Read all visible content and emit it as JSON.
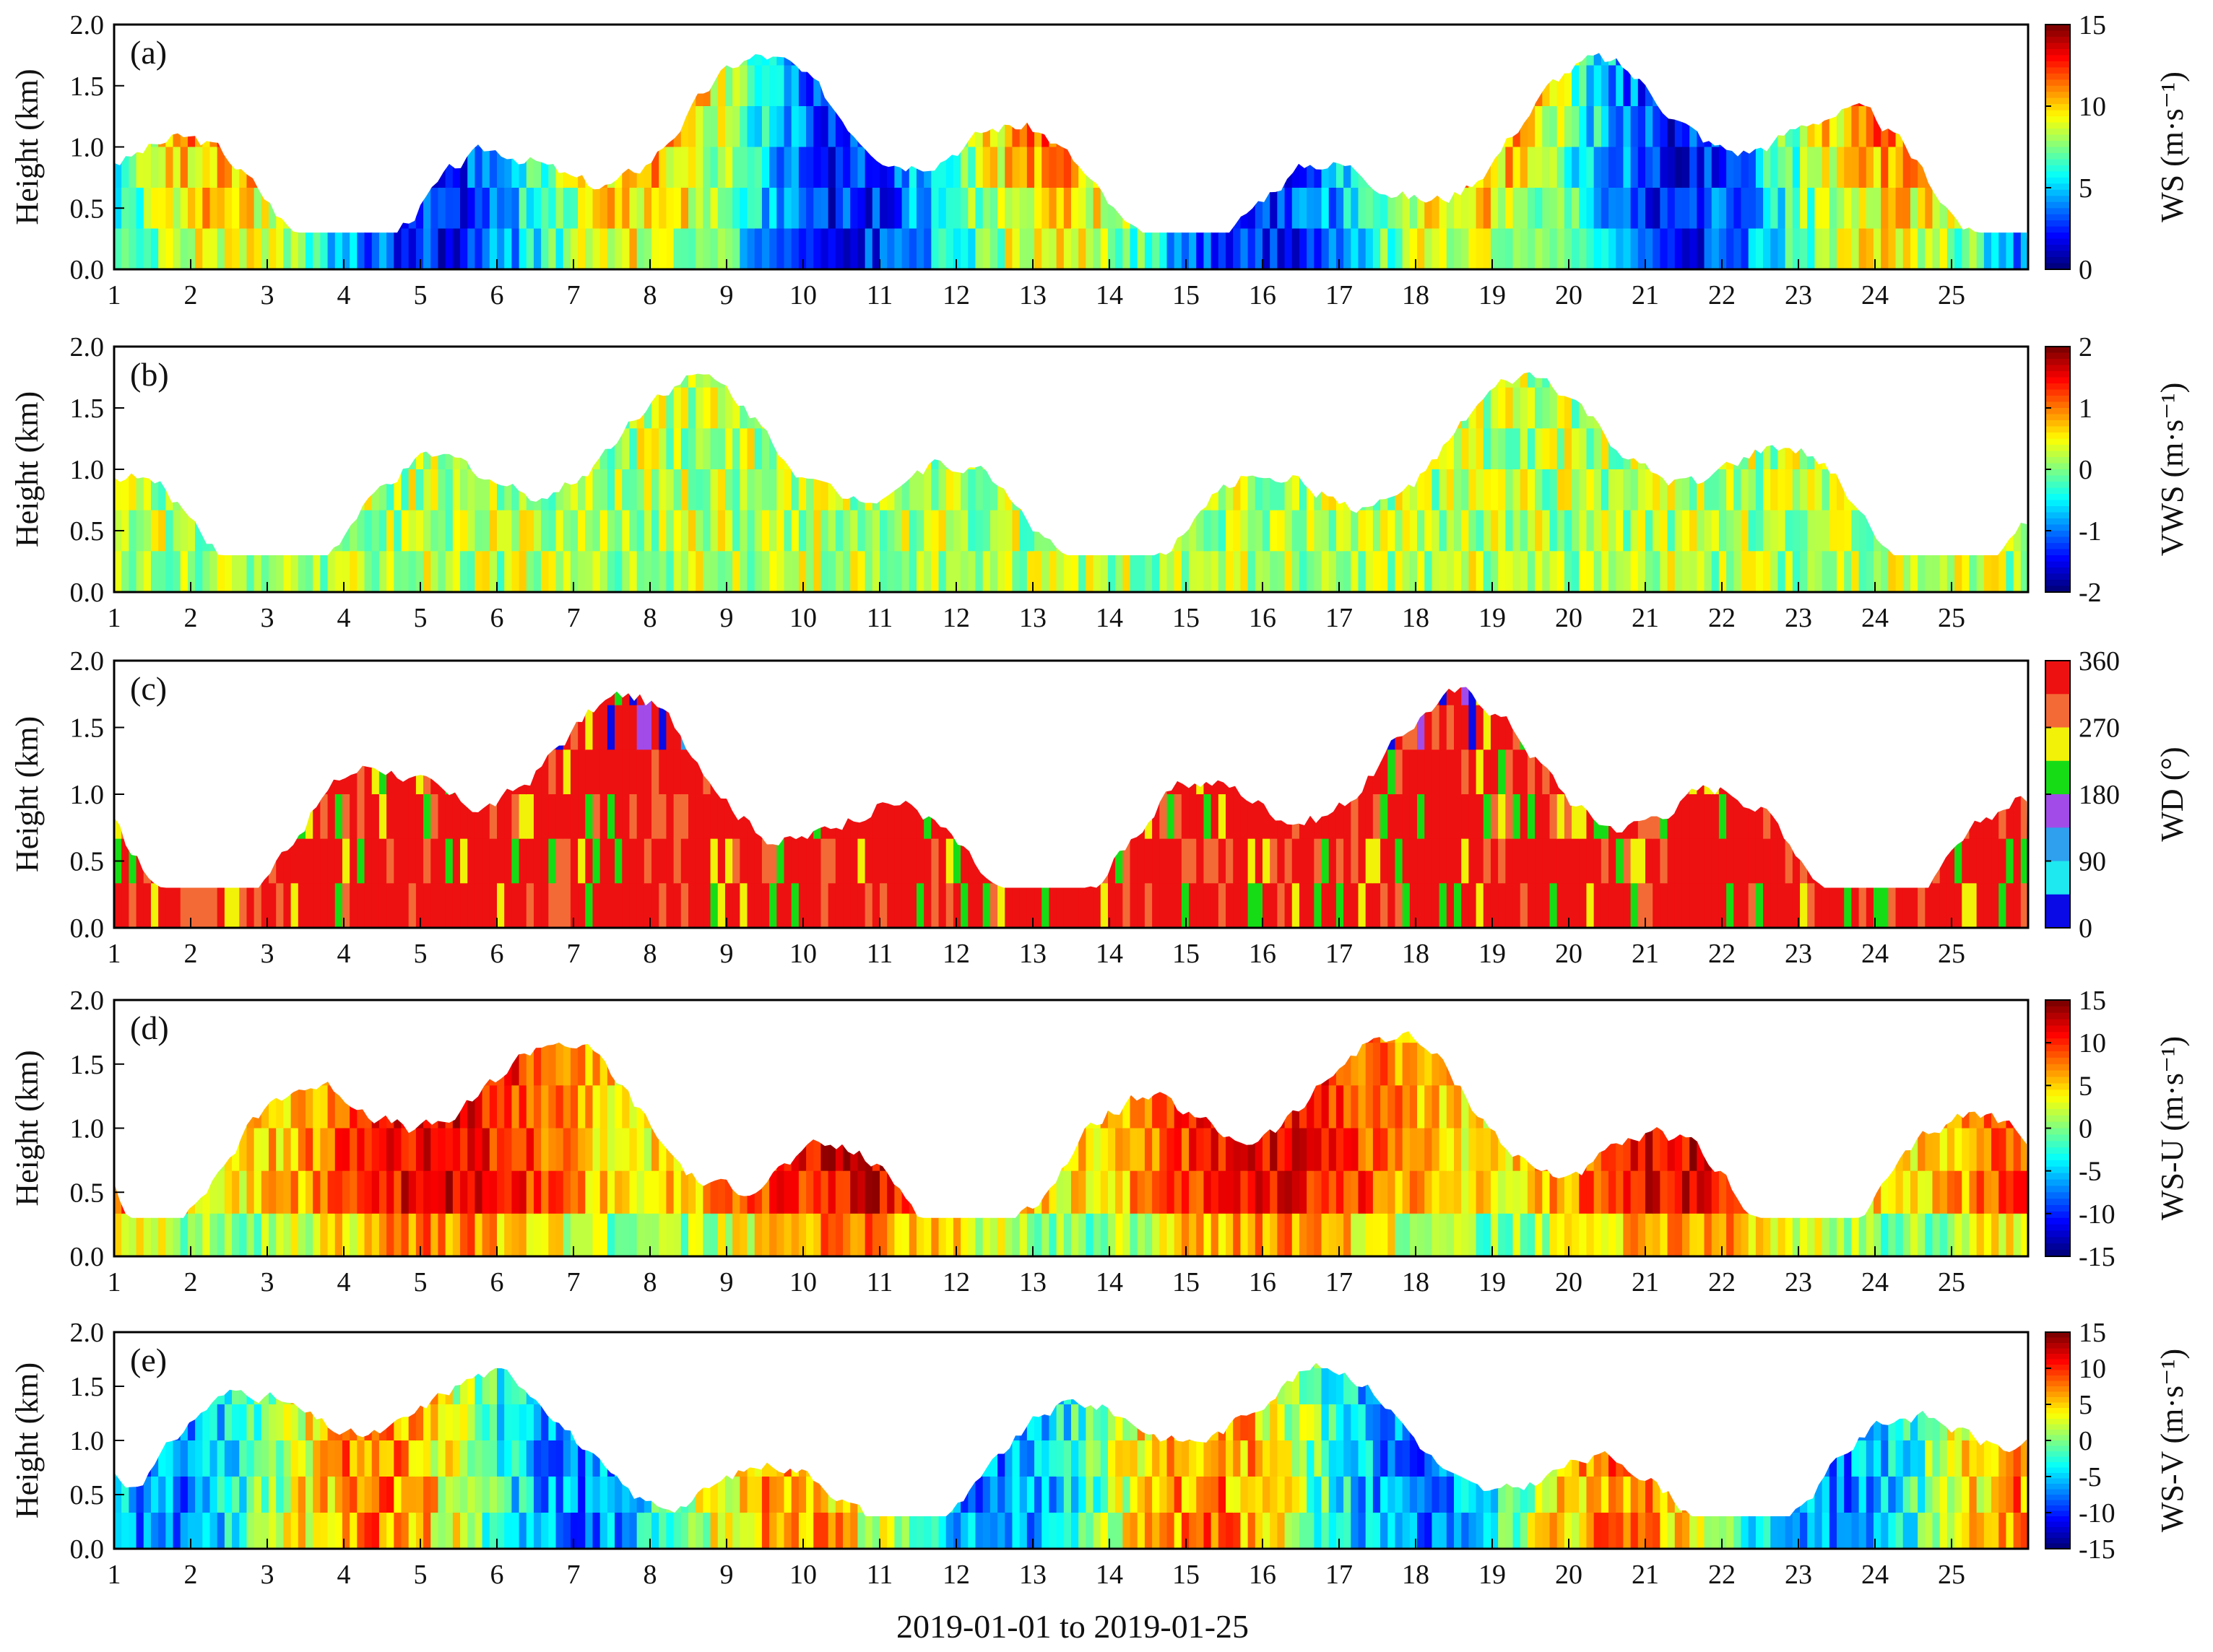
{
  "figure": {
    "xlabel": "2019-01-01 to 2019-01-25",
    "day_ticks": [
      "1",
      "2",
      "3",
      "4",
      "5",
      "6",
      "7",
      "8",
      "9",
      "10",
      "11",
      "12",
      "13",
      "14",
      "15",
      "16",
      "17",
      "18",
      "19",
      "20",
      "21",
      "22",
      "23",
      "24",
      "25"
    ],
    "ylabel": "Height (km)",
    "y_ticks": [
      "0.0",
      "0.5",
      "1.0",
      "1.5",
      "2.0"
    ]
  },
  "chart_data": [
    {
      "type": "heatmap",
      "panel": "(a)",
      "variable": "WS",
      "colorbar_label": "WS (m·s⁻¹)",
      "unit": "m·s⁻¹",
      "clim": [
        0,
        15
      ],
      "colorbar_ticks": [
        "15",
        "10",
        "5",
        "0"
      ],
      "colormap": "jet",
      "ylim": [
        0,
        2
      ],
      "xlim": [
        1,
        26
      ]
    },
    {
      "type": "heatmap",
      "panel": "(b)",
      "variable": "VWS",
      "colorbar_label": "VWS (m·s⁻¹)",
      "unit": "m·s⁻¹",
      "clim": [
        -2,
        2
      ],
      "colorbar_ticks": [
        "2",
        "1",
        "0",
        "-1",
        "-2"
      ],
      "colormap": "jet",
      "ylim": [
        0,
        2
      ],
      "xlim": [
        1,
        26
      ]
    },
    {
      "type": "heatmap",
      "panel": "(c)",
      "variable": "WD",
      "colorbar_label": "WD (°)",
      "unit": "°",
      "clim": [
        0,
        360
      ],
      "colorbar_ticks": [
        "360",
        "270",
        "180",
        "90",
        "0"
      ],
      "colormap_discrete": [
        "#0a0ae6",
        "#1ee8f0",
        "#2ea0ee",
        "#a24be8",
        "#16dc16",
        "#f2f208",
        "#f46a36",
        "#ee1111"
      ],
      "ylim": [
        0,
        2
      ],
      "xlim": [
        1,
        26
      ]
    },
    {
      "type": "heatmap",
      "panel": "(d)",
      "variable": "WS-U",
      "colorbar_label": "WS-U (m·s⁻¹)",
      "unit": "m·s⁻¹",
      "clim": [
        -15,
        15
      ],
      "colorbar_ticks": [
        "15",
        "10",
        "5",
        "0",
        "-5",
        "-10",
        "-15"
      ],
      "colormap": "jet",
      "ylim": [
        0,
        2
      ],
      "xlim": [
        1,
        26
      ]
    },
    {
      "type": "heatmap",
      "panel": "(e)",
      "variable": "WS-V",
      "colorbar_label": "WS-V (m·s⁻¹)",
      "unit": "m·s⁻¹",
      "clim": [
        -15,
        15
      ],
      "colorbar_ticks": [
        "15",
        "10",
        "5",
        "0",
        "-5",
        "-10",
        "-15"
      ],
      "colormap": "jet",
      "ylim": [
        0,
        2
      ],
      "xlim": [
        1,
        26
      ]
    }
  ]
}
